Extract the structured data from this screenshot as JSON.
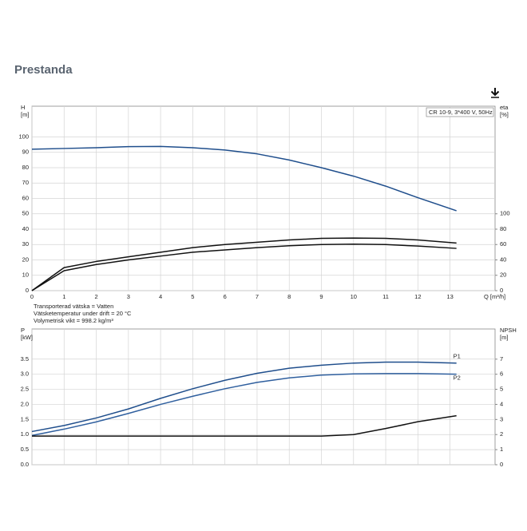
{
  "header": {
    "title": "Prestanda"
  },
  "chart_data": [
    {
      "type": "line",
      "legend_box": "CR 10-9, 3*400 V, 50Hz",
      "ylabel": [
        "H",
        "[m]"
      ],
      "y2label": [
        "eta",
        "[%]"
      ],
      "xlabel": "Q [m³/h]",
      "x": [
        0,
        1,
        2,
        3,
        4,
        5,
        6,
        7,
        8,
        9,
        10,
        11,
        12,
        13.2
      ],
      "xlim": [
        0,
        14.4
      ],
      "xticks": [
        0,
        1,
        2,
        3,
        4,
        5,
        6,
        7,
        8,
        9,
        10,
        11,
        12,
        13
      ],
      "ylim": [
        0,
        120
      ],
      "yticks": [
        0,
        10,
        20,
        30,
        40,
        50,
        60,
        70,
        80,
        90,
        100
      ],
      "y2lim": [
        0,
        240
      ],
      "y2ticks": [
        0,
        20,
        40,
        60,
        80,
        100
      ],
      "grid": true,
      "series": [
        {
          "color": "#1f4e8c",
          "values": [
            92,
            92.5,
            93,
            93.7,
            93.8,
            93,
            91.5,
            89,
            85,
            80,
            74.5,
            68,
            60.5,
            52
          ]
        },
        {
          "color": "#111111",
          "axis": "y2",
          "values": [
            0,
            30,
            38,
            44,
            50,
            56,
            60,
            63,
            66,
            68,
            68.5,
            68,
            66,
            62
          ]
        },
        {
          "color": "#111111",
          "axis": "y2",
          "values": [
            0,
            26,
            34,
            40,
            45,
            50,
            53,
            56,
            58.5,
            60,
            60.5,
            60,
            58,
            55
          ]
        }
      ],
      "annotations": [
        "Transporterad vätska = Vatten",
        "Vätsketemperatur under drift = 20 °C",
        "Volymetrisk vikt = 998.2 kg/m³"
      ]
    },
    {
      "type": "line",
      "ylabel": [
        "P",
        "[kW]"
      ],
      "y2label": [
        "NPSH",
        "[m]"
      ],
      "x": [
        0,
        1,
        2,
        3,
        4,
        5,
        6,
        7,
        8,
        9,
        10,
        11,
        12,
        13.2
      ],
      "xlim": [
        0,
        14.4
      ],
      "xticks": [
        0,
        1,
        2,
        3,
        4,
        5,
        6,
        7,
        8,
        9,
        10,
        11,
        12,
        13
      ],
      "ylim": [
        0,
        4.5
      ],
      "yticks": [
        {
          "value": 0,
          "label": "0.0"
        },
        {
          "value": 0.5,
          "label": "0.5"
        },
        {
          "value": 1,
          "label": "1.0"
        },
        {
          "value": 1.5,
          "label": "1.5"
        },
        {
          "value": 2,
          "label": "2.0"
        },
        {
          "value": 2.5,
          "label": "2.5"
        },
        {
          "value": 3,
          "label": "3.0"
        },
        {
          "value": 3.5,
          "label": "3.5"
        }
      ],
      "y2lim": [
        0,
        9
      ],
      "y2ticks": [
        0,
        1,
        2,
        3,
        4,
        5,
        6,
        7
      ],
      "grid": true,
      "series": [
        {
          "name": "P1",
          "color": "#1f4e8c",
          "values": [
            1.1,
            1.3,
            1.55,
            1.85,
            2.2,
            2.52,
            2.8,
            3.03,
            3.2,
            3.3,
            3.37,
            3.4,
            3.4,
            3.37
          ]
        },
        {
          "name": "P2",
          "color": "#2f5f9e",
          "values": [
            0.97,
            1.18,
            1.42,
            1.7,
            2.0,
            2.27,
            2.52,
            2.73,
            2.88,
            2.97,
            3.01,
            3.02,
            3.02,
            3.0
          ]
        },
        {
          "color": "#111111",
          "axis": "y2",
          "values": [
            1.9,
            1.9,
            1.9,
            1.9,
            1.9,
            1.9,
            1.9,
            1.9,
            1.9,
            1.9,
            2.0,
            2.4,
            2.85,
            3.25
          ]
        }
      ]
    }
  ]
}
